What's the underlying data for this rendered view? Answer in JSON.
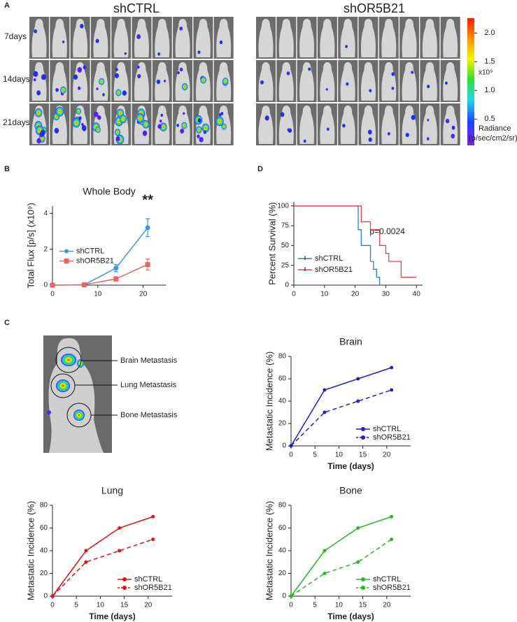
{
  "panel_labels": [
    "A",
    "B",
    "C",
    "D"
  ],
  "imaging": {
    "groups": [
      "shCTRL",
      "shOR5B21"
    ],
    "rows": [
      "7days",
      "14days",
      "21days"
    ],
    "colorbar": {
      "lim": [
        0.04,
        2.26
      ],
      "ticks": [
        {
          "value": 2,
          "label": "2.0"
        },
        {
          "value": 1.5,
          "label": "1.5"
        },
        {
          "value": 1,
          "label": "1.0"
        },
        {
          "value": 0.5,
          "label": "0.5"
        }
      ],
      "unit": "x10⁹",
      "label": "Radiance",
      "sublabel": "(p/sec/cm2/sr)"
    }
  },
  "metastasis_diagram": {
    "labels": [
      "Brain Metastasis",
      "Lung Metastasis",
      "Bone Metastasis"
    ]
  },
  "chart_data": [
    {
      "type": "line",
      "title": "Whole Body",
      "ylabel": "Total Flux [p/s] (x10⁹)",
      "annotation": "**",
      "x": [
        0,
        7,
        14,
        21
      ],
      "xlim": [
        0,
        25
      ],
      "xticks": [
        0,
        10,
        20
      ],
      "ylim": [
        0,
        4.4
      ],
      "yticks": [
        0,
        2,
        4
      ],
      "legend": "center left",
      "series": [
        {
          "name": "shCTRL",
          "color": "#3a9ad9",
          "marker": "circle",
          "linestyle": "solid",
          "values": [
            0,
            0.02,
            0.95,
            3.2
          ],
          "errors": [
            0,
            0.02,
            0.2,
            0.5
          ]
        },
        {
          "name": "shOR5B21",
          "color": "#e86464",
          "marker": "square",
          "linestyle": "solid",
          "values": [
            0,
            0.02,
            0.35,
            1.15
          ],
          "errors": [
            0,
            0.02,
            0.12,
            0.3
          ]
        }
      ]
    },
    {
      "type": "step",
      "ylabel": "Percent Survival (%)",
      "annotation": "p=0.0024",
      "xlim": [
        0,
        42
      ],
      "xticks": [
        0,
        10,
        20,
        30,
        40
      ],
      "ylim": [
        0,
        105
      ],
      "yticks": [
        0,
        25,
        50,
        75,
        100
      ],
      "legend": "lower left",
      "series": [
        {
          "name": "shCTRL",
          "color": "#2a7fc9",
          "x": [
            0,
            21,
            22,
            25,
            26,
            27,
            28
          ],
          "values": [
            100,
            70,
            50,
            30,
            20,
            10,
            0
          ]
        },
        {
          "name": "shOR5B21",
          "color": "#e0474c",
          "x": [
            0,
            22,
            25,
            28,
            30,
            31,
            35,
            40
          ],
          "values": [
            100,
            80,
            70,
            50,
            40,
            30,
            10,
            10
          ]
        }
      ]
    },
    {
      "type": "line",
      "title": "Brain",
      "ylabel": "Metastatic Incidence (%)",
      "xlabel": "Time (days)",
      "x": [
        0,
        7,
        14,
        21
      ],
      "xlim": [
        0,
        25
      ],
      "xticks": [
        0,
        5,
        10,
        15,
        20
      ],
      "ylim": [
        0,
        80
      ],
      "yticks": [
        0,
        20,
        40,
        60,
        80
      ],
      "legend": "lower right",
      "series": [
        {
          "name": "shCTRL",
          "color": "#1f1fcf",
          "marker": "circle",
          "linestyle": "solid",
          "values": [
            0,
            50,
            60,
            70
          ]
        },
        {
          "name": "shOR5B21",
          "color": "#1f1fcf",
          "marker": "circle",
          "linestyle": "dashed",
          "values": [
            0,
            30,
            40,
            50
          ]
        }
      ]
    },
    {
      "type": "line",
      "title": "Lung",
      "ylabel": "Metastatic Incidence (%)",
      "xlabel": "Time (days)",
      "x": [
        0,
        7,
        14,
        21
      ],
      "xlim": [
        0,
        25
      ],
      "xticks": [
        0,
        5,
        10,
        15,
        20
      ],
      "ylim": [
        0,
        80
      ],
      "yticks": [
        0,
        20,
        40,
        60,
        80
      ],
      "legend": "lower right",
      "series": [
        {
          "name": "shCTRL",
          "color": "#e01010",
          "marker": "circle",
          "linestyle": "solid",
          "values": [
            0,
            40,
            60,
            70
          ]
        },
        {
          "name": "shOR5B21",
          "color": "#e01010",
          "marker": "circle",
          "linestyle": "dashed",
          "values": [
            0,
            30,
            40,
            50
          ]
        }
      ]
    },
    {
      "type": "line",
      "title": "Bone",
      "ylabel": "Metastatic Incidence (%)",
      "xlabel": "Time (days)",
      "x": [
        0,
        7,
        14,
        21
      ],
      "xlim": [
        0,
        25
      ],
      "xticks": [
        0,
        5,
        10,
        15,
        20
      ],
      "ylim": [
        0,
        80
      ],
      "yticks": [
        0,
        20,
        40,
        60,
        80
      ],
      "legend": "lower right",
      "series": [
        {
          "name": "shCTRL",
          "color": "#22bb22",
          "marker": "circle",
          "linestyle": "solid",
          "values": [
            0,
            40,
            60,
            70
          ]
        },
        {
          "name": "shOR5B21",
          "color": "#22bb22",
          "marker": "circle",
          "linestyle": "dashed",
          "values": [
            0,
            20,
            30,
            50
          ]
        }
      ]
    }
  ]
}
